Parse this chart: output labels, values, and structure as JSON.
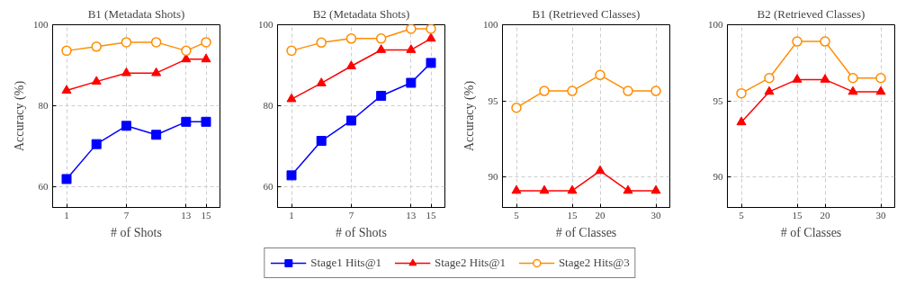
{
  "chart_data": [
    {
      "type": "line",
      "title": "B1 (Metadata Shots)",
      "xlabel": "# of Shots",
      "ylabel": "Accuracy (%)",
      "x": [
        1,
        4,
        7,
        10,
        13,
        15
      ],
      "xlim": [
        -0.4,
        16.4
      ],
      "xticks": [
        1,
        7,
        13,
        15
      ],
      "ylim": [
        55,
        100
      ],
      "yticks": [
        60,
        80,
        100
      ],
      "grid": true,
      "legend": "bottom",
      "series": [
        {
          "name": "Stage1 Hits@1",
          "color": "#0000ff",
          "marker": "square",
          "values": [
            62.0,
            70.6,
            75.1,
            72.9,
            76.1,
            76.1
          ]
        },
        {
          "name": "Stage2 Hits@1",
          "color": "#ff0000",
          "marker": "triangle",
          "values": [
            83.8,
            86.0,
            88.1,
            88.1,
            91.5,
            91.5
          ]
        },
        {
          "name": "Stage2 Hits@3",
          "color": "#ff8c00",
          "marker": "circle",
          "values": [
            93.6,
            94.6,
            95.7,
            95.7,
            93.6,
            95.7
          ]
        }
      ]
    },
    {
      "type": "line",
      "title": "B2 (Metadata Shots)",
      "xlabel": "# of Shots",
      "x": [
        1,
        4,
        7,
        10,
        13,
        15
      ],
      "xlim": [
        -0.4,
        16.4
      ],
      "xticks": [
        1,
        7,
        13,
        15
      ],
      "ylim": [
        55,
        100
      ],
      "yticks": [
        60,
        80,
        100
      ],
      "grid": true,
      "series": [
        {
          "color": "#0000ff",
          "marker": "square",
          "values": [
            62.9,
            71.4,
            76.4,
            82.5,
            85.7,
            90.6
          ]
        },
        {
          "color": "#ff0000",
          "marker": "triangle",
          "values": [
            81.7,
            85.6,
            89.8,
            93.8,
            93.8,
            96.6
          ]
        },
        {
          "color": "#ff8c00",
          "marker": "circle",
          "values": [
            93.6,
            95.6,
            96.6,
            96.6,
            99.0,
            99.0
          ]
        }
      ]
    },
    {
      "type": "line",
      "title": "B1 (Retrieved Classes)",
      "xlabel": "# of Classes",
      "ylabel": "Accuracy (%)",
      "x": [
        5,
        10,
        15,
        20,
        25,
        30
      ],
      "xlim": [
        2.5,
        32.5
      ],
      "xticks": [
        5,
        15,
        20,
        30
      ],
      "ylim": [
        88,
        100
      ],
      "yticks": [
        90,
        95,
        100
      ],
      "grid": true,
      "series": [
        {
          "color": "#ff0000",
          "marker": "triangle",
          "values": [
            89.1,
            89.1,
            89.1,
            90.4,
            89.1,
            89.1
          ]
        },
        {
          "color": "#ff8c00",
          "marker": "circle",
          "values": [
            94.55,
            95.65,
            95.65,
            96.7,
            95.65,
            95.65
          ]
        }
      ]
    },
    {
      "type": "line",
      "title": "B2 (Retrieved Classes)",
      "xlabel": "# of Classes",
      "x": [
        5,
        10,
        15,
        20,
        25,
        30
      ],
      "xlim": [
        2.5,
        32.5
      ],
      "xticks": [
        5,
        15,
        20,
        30
      ],
      "ylim": [
        88,
        100
      ],
      "yticks": [
        90,
        95,
        100
      ],
      "grid": true,
      "series": [
        {
          "color": "#ff0000",
          "marker": "triangle",
          "values": [
            93.6,
            95.6,
            96.4,
            96.4,
            95.6,
            95.6
          ]
        },
        {
          "color": "#ff8c00",
          "marker": "circle",
          "values": [
            95.5,
            96.5,
            98.9,
            98.9,
            96.5,
            96.5
          ]
        }
      ]
    }
  ]
}
